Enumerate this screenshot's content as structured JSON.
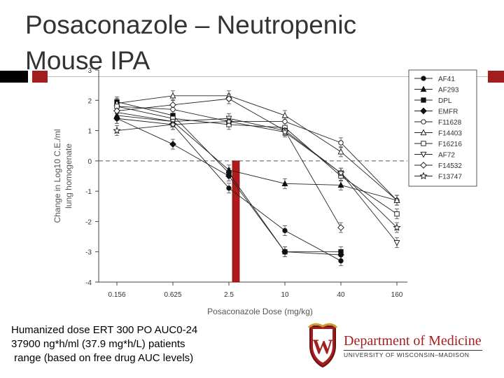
{
  "slide": {
    "title": "Posaconazole – Neutropenic Mouse IPA",
    "caption_lines": [
      "Humanized dose ERT 300 PO AUC0-24",
      "37900 ng*h/ml (37.9 mg*h/L) patients",
      " range (based on free drug AUC levels)"
    ]
  },
  "logo": {
    "crest_letter": "W",
    "department": "Department of Medicine",
    "university": "UNIVERSITY OF WISCONSIN–MADISON"
  },
  "colors": {
    "accent_red": "#a31f1f",
    "bar_red": "#b01a1a",
    "title_gray": "#333333"
  },
  "chart_data": {
    "type": "line",
    "xlabel": "Posaconazole Dose (mg/kg)",
    "ylabel_lines": [
      "Change in Log10 C.E./ml",
      "lung homogenate"
    ],
    "categories": [
      "0.156",
      "0.625",
      "2.5",
      "10",
      "40",
      "160"
    ],
    "yticks": [
      3,
      2,
      1,
      0,
      -1,
      -2,
      -3,
      -4
    ],
    "ylim": [
      -4,
      3
    ],
    "reference_line": 0,
    "reference_bar": {
      "category": "2.5",
      "from": 0,
      "to": -4
    },
    "grid": false,
    "legend_position": "top-right",
    "series": [
      {
        "name": "AF41",
        "marker": "circle-filled",
        "values": [
          1.4,
          1.2,
          -0.9,
          -2.3,
          -3.3,
          null
        ]
      },
      {
        "name": "AF293",
        "marker": "triangle-filled",
        "values": [
          1.5,
          1.3,
          -0.3,
          -0.75,
          -0.8,
          -1.3
        ]
      },
      {
        "name": "DPL",
        "marker": "square-filled",
        "values": [
          1.95,
          1.5,
          -0.4,
          -3.0,
          -3.0,
          null
        ]
      },
      {
        "name": "EMFR",
        "marker": "diamond-filled",
        "values": [
          1.4,
          0.55,
          -0.5,
          -3.0,
          -3.1,
          null
        ]
      },
      {
        "name": "F11628",
        "marker": "circle-open",
        "values": [
          1.8,
          1.7,
          1.3,
          1.3,
          0.6,
          -1.3
        ]
      },
      {
        "name": "F14403",
        "marker": "triangle-open",
        "values": [
          1.9,
          2.15,
          2.15,
          1.5,
          0.3,
          -1.3
        ]
      },
      {
        "name": "F16216",
        "marker": "square-open",
        "values": [
          1.8,
          1.4,
          1.2,
          1.1,
          -0.5,
          -1.75
        ]
      },
      {
        "name": "AF72",
        "marker": "triangle-down-open",
        "values": [
          1.6,
          1.3,
          1.4,
          1.0,
          -0.4,
          -2.7
        ]
      },
      {
        "name": "F14532",
        "marker": "diamond-open",
        "values": [
          1.65,
          1.85,
          2.05,
          1.0,
          -2.2,
          null
        ]
      },
      {
        "name": "F13747",
        "marker": "star-open",
        "values": [
          1.0,
          1.2,
          1.3,
          0.95,
          -0.4,
          -2.2
        ]
      }
    ]
  }
}
